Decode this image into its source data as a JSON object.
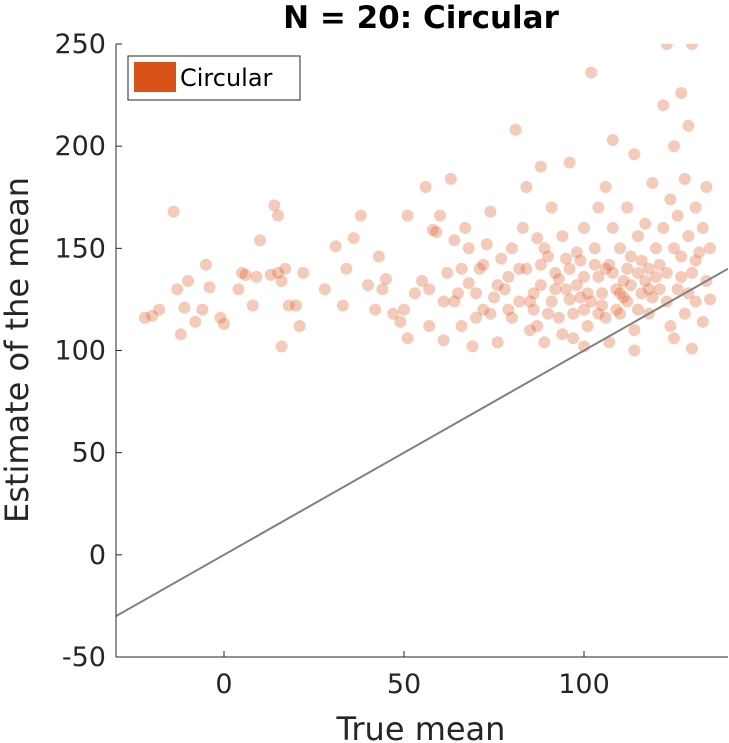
{
  "chart_data": {
    "type": "scatter",
    "title": "N = 20: Circular",
    "xlabel": "True mean",
    "ylabel": "Estimate of the mean",
    "xlim": [
      -30,
      140
    ],
    "ylim": [
      -50,
      250
    ],
    "xticks": [
      "0",
      "50",
      "100"
    ],
    "xtick_values": [
      0,
      50,
      100
    ],
    "yticks": [
      "-50",
      "0",
      "50",
      "100",
      "150",
      "200",
      "250"
    ],
    "ytick_values": [
      -50,
      0,
      50,
      100,
      150,
      200,
      250
    ],
    "grid": false,
    "legend": {
      "position": "top-left",
      "entries": [
        "Circular"
      ]
    },
    "reference_line": {
      "name": "identity",
      "slope": 1,
      "intercept": 0,
      "color": "#808080"
    },
    "series": [
      {
        "name": "Circular",
        "color": "#d95319",
        "alpha": 0.3,
        "points": [
          [
            -22,
            116
          ],
          [
            -20,
            117
          ],
          [
            -18,
            120
          ],
          [
            -14,
            168
          ],
          [
            -13,
            130
          ],
          [
            -12,
            108
          ],
          [
            -11,
            121
          ],
          [
            -10,
            134
          ],
          [
            -8,
            114
          ],
          [
            -6,
            120
          ],
          [
            -5,
            142
          ],
          [
            -4,
            131
          ],
          [
            -1,
            116
          ],
          [
            0,
            113
          ],
          [
            4,
            130
          ],
          [
            5,
            138
          ],
          [
            6,
            137
          ],
          [
            8,
            122
          ],
          [
            9,
            136
          ],
          [
            10,
            154
          ],
          [
            13,
            137
          ],
          [
            14,
            171
          ],
          [
            15,
            138
          ],
          [
            15,
            166
          ],
          [
            16,
            102
          ],
          [
            16,
            134
          ],
          [
            17,
            140
          ],
          [
            18,
            122
          ],
          [
            20,
            122
          ],
          [
            21,
            112
          ],
          [
            22,
            138
          ],
          [
            28,
            130
          ],
          [
            31,
            151
          ],
          [
            33,
            122
          ],
          [
            34,
            140
          ],
          [
            36,
            155
          ],
          [
            38,
            166
          ],
          [
            40,
            132
          ],
          [
            42,
            120
          ],
          [
            43,
            146
          ],
          [
            44,
            130
          ],
          [
            45,
            135
          ],
          [
            47,
            118
          ],
          [
            49,
            114
          ],
          [
            50,
            120
          ],
          [
            51,
            166
          ],
          [
            51,
            106
          ],
          [
            53,
            128
          ],
          [
            55,
            134
          ],
          [
            56,
            180
          ],
          [
            57,
            130
          ],
          [
            57,
            112
          ],
          [
            58,
            159
          ],
          [
            59,
            158
          ],
          [
            60,
            166
          ],
          [
            61,
            124
          ],
          [
            61,
            105
          ],
          [
            62,
            138
          ],
          [
            63,
            184
          ],
          [
            64,
            124
          ],
          [
            66,
            112
          ],
          [
            67,
            160
          ],
          [
            68,
            133
          ],
          [
            69,
            102
          ],
          [
            70,
            116
          ],
          [
            71,
            140
          ],
          [
            72,
            120
          ],
          [
            73,
            152
          ],
          [
            74,
            168
          ],
          [
            75,
            126
          ],
          [
            76,
            104
          ],
          [
            77,
            145
          ],
          [
            78,
            130
          ],
          [
            79,
            136
          ],
          [
            80,
            116
          ],
          [
            80,
            150
          ],
          [
            81,
            208
          ],
          [
            82,
            124
          ],
          [
            83,
            160
          ],
          [
            84,
            140
          ],
          [
            84,
            180
          ],
          [
            85,
            110
          ],
          [
            86,
            120
          ],
          [
            87,
            155
          ],
          [
            88,
            132
          ],
          [
            88,
            190
          ],
          [
            89,
            104
          ],
          [
            90,
            146
          ],
          [
            91,
            124
          ],
          [
            91,
            170
          ],
          [
            92,
            138
          ],
          [
            93,
            116
          ],
          [
            94,
            156
          ],
          [
            95,
            130
          ],
          [
            96,
            140
          ],
          [
            96,
            192
          ],
          [
            97,
            118
          ],
          [
            98,
            148
          ],
          [
            99,
            126
          ],
          [
            100,
            160
          ],
          [
            100,
            136
          ],
          [
            101,
            112
          ],
          [
            102,
            124
          ],
          [
            102,
            236
          ],
          [
            103,
            150
          ],
          [
            104,
            136
          ],
          [
            104,
            170
          ],
          [
            105,
            128
          ],
          [
            106,
            116
          ],
          [
            106,
            180
          ],
          [
            107,
            142
          ],
          [
            108,
            160
          ],
          [
            108,
            203
          ],
          [
            109,
            130
          ],
          [
            110,
            118
          ],
          [
            110,
            150
          ],
          [
            111,
            134
          ],
          [
            112,
            170
          ],
          [
            112,
            124
          ],
          [
            113,
            146
          ],
          [
            114,
            110
          ],
          [
            114,
            196
          ],
          [
            115,
            138
          ],
          [
            115,
            156
          ],
          [
            116,
            128
          ],
          [
            117,
            162
          ],
          [
            118,
            140
          ],
          [
            118,
            118
          ],
          [
            119,
            182
          ],
          [
            120,
            150
          ],
          [
            121,
            130
          ],
          [
            122,
            220
          ],
          [
            122,
            160
          ],
          [
            123,
            138
          ],
          [
            124,
            112
          ],
          [
            124,
            174
          ],
          [
            125,
            150
          ],
          [
            125,
            200
          ],
          [
            126,
            130
          ],
          [
            126,
            166
          ],
          [
            127,
            146
          ],
          [
            127,
            226
          ],
          [
            128,
            118
          ],
          [
            128,
            184
          ],
          [
            129,
            156
          ],
          [
            129,
            210
          ],
          [
            130,
            138
          ],
          [
            130,
            250
          ],
          [
            131,
            170
          ],
          [
            131,
            124
          ],
          [
            132,
            148
          ],
          [
            133,
            160
          ],
          [
            133,
            114
          ],
          [
            134,
            180
          ],
          [
            134,
            134
          ],
          [
            135,
            150
          ],
          [
            135,
            125
          ],
          [
            123,
            250
          ],
          [
            93,
            135
          ],
          [
            95,
            145
          ],
          [
            98,
            132
          ],
          [
            100,
            120
          ],
          [
            103,
            142
          ],
          [
            105,
            122
          ],
          [
            108,
            138
          ],
          [
            110,
            128
          ],
          [
            112,
            140
          ],
          [
            115,
            120
          ],
          [
            117,
            134
          ],
          [
            119,
            126
          ],
          [
            121,
            142
          ],
          [
            123,
            124
          ],
          [
            127,
            136
          ],
          [
            129,
            128
          ],
          [
            131,
            144
          ],
          [
            86,
            128
          ],
          [
            88,
            142
          ],
          [
            90,
            118
          ],
          [
            92,
            130
          ],
          [
            96,
            125
          ],
          [
            99,
            144
          ],
          [
            101,
            128
          ],
          [
            104,
            118
          ],
          [
            106,
            140
          ],
          [
            109,
            120
          ],
          [
            111,
            126
          ],
          [
            113,
            132
          ],
          [
            116,
            144
          ],
          [
            118,
            130
          ],
          [
            120,
            136
          ],
          [
            82,
            140
          ],
          [
            85,
            124
          ],
          [
            87,
            112
          ],
          [
            89,
            150
          ],
          [
            94,
            108
          ],
          [
            97,
            106
          ],
          [
            100,
            102
          ],
          [
            107,
            104
          ],
          [
            114,
            100
          ],
          [
            125,
            106
          ],
          [
            130,
            101
          ],
          [
            79,
            120
          ],
          [
            76,
            132
          ],
          [
            74,
            118
          ],
          [
            72,
            142
          ],
          [
            70,
            128
          ],
          [
            68,
            150
          ],
          [
            66,
            140
          ],
          [
            65,
            128
          ],
          [
            64,
            154
          ]
        ]
      }
    ]
  }
}
